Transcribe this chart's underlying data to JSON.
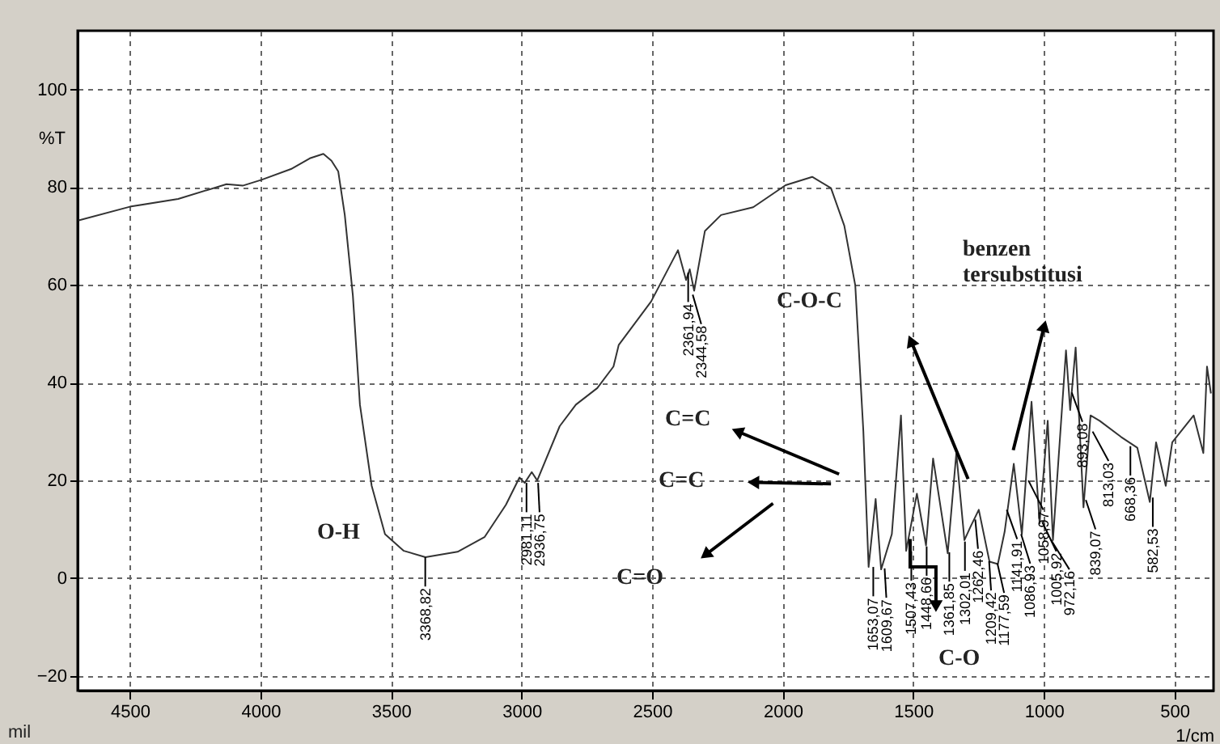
{
  "chart_data": {
    "type": "line",
    "xlabel": "1/cm",
    "ylabel": "%T",
    "xlim": [
      4700,
      350
    ],
    "ylim": [
      -23,
      112
    ],
    "xticks": [
      4500,
      4000,
      3500,
      3000,
      2500,
      2000,
      1500,
      1000,
      500
    ],
    "yticks": [
      -20,
      0,
      20,
      40,
      60,
      80,
      100
    ],
    "grid": true,
    "line_style": "solid",
    "color": "#333333",
    "x": [
      4696,
      4500,
      4315,
      4130,
      4068,
      3996,
      3883,
      3811,
      3759,
      3728,
      3702,
      3677,
      3646,
      3619,
      3574,
      3523,
      3451,
      3368,
      3245,
      3142,
      3060,
      3008,
      2988,
      2961,
      2940,
      2854,
      2792,
      2710,
      2648,
      2628,
      2504,
      2401,
      2370,
      2356,
      2339,
      2298,
      2236,
      2113,
      1989,
      1887,
      1815,
      1764,
      1722,
      1691,
      1671,
      1644,
      1623,
      1582,
      1547,
      1527,
      1486,
      1451,
      1424,
      1368,
      1335,
      1304,
      1280,
      1249,
      1208,
      1176,
      1150,
      1115,
      1084,
      1047,
      1016,
      985,
      965,
      915,
      899,
      878,
      848,
      821,
      786,
      704,
      642,
      594,
      570,
      533,
      508,
      426,
      389,
      375,
      360
    ],
    "values": [
      73.2,
      76.0,
      77.6,
      80.6,
      80.3,
      81.5,
      83.7,
      85.9,
      86.8,
      85.4,
      83.2,
      74.3,
      57.8,
      35.5,
      18.9,
      9.0,
      5.6,
      4.3,
      5.4,
      8.4,
      15.0,
      20.6,
      19.5,
      21.7,
      20.0,
      31.1,
      35.5,
      38.9,
      43.3,
      47.7,
      56.6,
      67.1,
      61.0,
      63.2,
      58.8,
      71.0,
      74.3,
      75.9,
      80.4,
      82.1,
      79.8,
      72.1,
      59.9,
      30.0,
      2.3,
      16.2,
      1.8,
      9.0,
      33.3,
      5.6,
      17.3,
      6.7,
      24.5,
      5.1,
      25.6,
      7.8,
      10.6,
      14.0,
      3.4,
      2.9,
      9.5,
      23.4,
      9.0,
      36.1,
      11.2,
      32.2,
      7.8,
      46.6,
      34.4,
      47.2,
      14.5,
      33.3,
      32.2,
      28.9,
      26.7,
      15.6,
      27.8,
      18.9,
      27.8,
      33.3,
      25.6,
      43.3,
      37.8
    ],
    "annotations": [
      "mil",
      "O-H",
      "C-O-C",
      "benzen tersubstitusi",
      "C=C",
      "C=C",
      "C=O",
      "C-O",
      {
        "text": "3368,82",
        "x": 3368.82,
        "y": 4.3
      },
      {
        "text": "2981,11",
        "x": 2981.11,
        "y": 19.5
      },
      {
        "text": "2936,75",
        "x": 2936.75,
        "y": 19.5
      },
      {
        "text": "2361,94",
        "x": 2361.94,
        "y": 62.5
      },
      {
        "text": "2344,58",
        "x": 2344.58,
        "y": 58.0
      },
      {
        "text": "1653,07",
        "x": 1653.07,
        "y": 2.3
      },
      {
        "text": "1609,67",
        "x": 1609.67,
        "y": 2.0
      },
      {
        "text": "1507,43",
        "x": 1507.43,
        "y": 5.5
      },
      {
        "text": "1448,66",
        "x": 1448.66,
        "y": 6.5
      },
      {
        "text": "1361,85",
        "x": 1361.85,
        "y": 5.3
      },
      {
        "text": "1302,01",
        "x": 1302.01,
        "y": 7.5
      },
      {
        "text": "1262,46",
        "x": 1262.46,
        "y": 12.0
      },
      {
        "text": "1209,42",
        "x": 1209.42,
        "y": 3.5
      },
      {
        "text": "1177,59",
        "x": 1177.59,
        "y": 3.0
      },
      {
        "text": "1141,91",
        "x": 1141.91,
        "y": 14.0
      },
      {
        "text": "1086,93",
        "x": 1086.93,
        "y": 9.0
      },
      {
        "text": "1058,97",
        "x": 1058.97,
        "y": 20.0
      },
      {
        "text": "1005,92",
        "x": 1005.92,
        "y": 11.5
      },
      {
        "text": "972,16",
        "x": 972.16,
        "y": 7.8
      },
      {
        "text": "893,08",
        "x": 893.08,
        "y": 38.0
      },
      {
        "text": "839,07",
        "x": 839.07,
        "y": 16.0
      },
      {
        "text": "813,03",
        "x": 813.03,
        "y": 30.0
      },
      {
        "text": "668,36",
        "x": 668.36,
        "y": 27.0
      },
      {
        "text": "582,53",
        "x": 582.53,
        "y": 16.5
      }
    ]
  }
}
